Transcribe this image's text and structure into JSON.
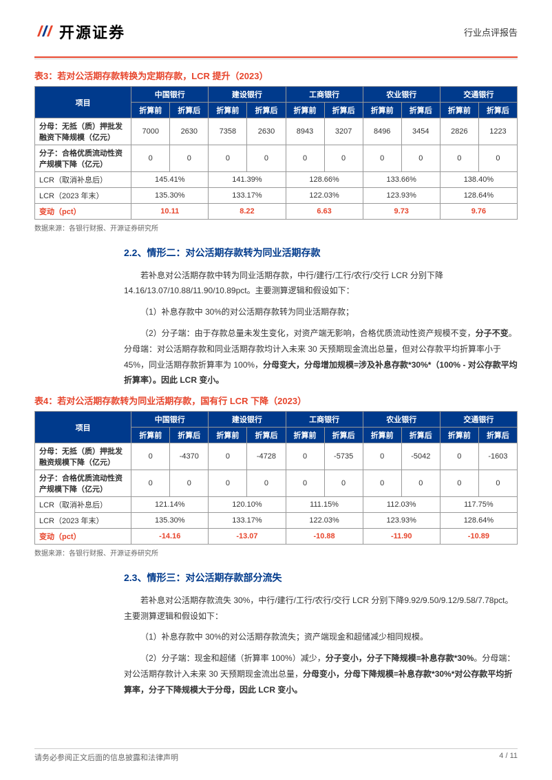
{
  "header": {
    "logo_text": "开源证券",
    "report_type": "行业点评报告"
  },
  "table3": {
    "title": "表3：若对公活期存款转换为定期存款，LCR 提升（2023）",
    "header_row1": {
      "item": "项目",
      "banks": [
        "中国银行",
        "建设银行",
        "工商银行",
        "农业银行",
        "交通银行"
      ]
    },
    "header_row2": [
      "折算前",
      "折算后",
      "折算前",
      "折算后",
      "折算前",
      "折算后",
      "折算前",
      "折算后",
      "折算前",
      "折算后"
    ],
    "rows": [
      {
        "name": "分母：无抵（质）押批发融资下降规模（亿元）",
        "vals": [
          "7000",
          "2630",
          "7358",
          "2630",
          "8943",
          "3207",
          "8496",
          "3454",
          "2826",
          "1223"
        ],
        "bold_name": true
      },
      {
        "name": "分子：合格优质流动性资产规模下降（亿元）",
        "vals": [
          "0",
          "0",
          "0",
          "0",
          "0",
          "0",
          "0",
          "0",
          "0",
          "0"
        ],
        "bold_name": true
      },
      {
        "name": "LCR（取消补息后）",
        "vals_merged": [
          "145.41%",
          "141.39%",
          "128.66%",
          "133.66%",
          "138.40%"
        ]
      },
      {
        "name": "LCR（2023 年末）",
        "vals_merged": [
          "135.30%",
          "133.17%",
          "122.03%",
          "123.93%",
          "128.64%"
        ]
      },
      {
        "name": "变动（pct）",
        "vals_merged": [
          "10.11",
          "8.22",
          "6.63",
          "9.73",
          "9.76"
        ],
        "change": true
      }
    ],
    "source": "数据来源：各银行财报、开源证券研究所",
    "colors": {
      "header_bg": "#003a8c",
      "change_color": "#e7452c",
      "title_color": "#e7452c"
    }
  },
  "section22": {
    "heading": "2.2、情形二：对公活期存款转为同业活期存款",
    "p1": "若补息对公活期存款中转为同业活期存款，中行/建行/工行/农行/交行 LCR 分别下降 14.16/13.07/10.88/11.90/10.89pct。主要测算逻辑和假设如下：",
    "p2": "（1）补息存款中 30%的对公活期存款转为同业活期存款；",
    "p3_a": "（2）分子端：由于存款总量未发生变化，对资产端无影响，合格优质流动性资产规模不变，",
    "p3_b": "分子不变",
    "p3_c": "。分母端：对公活期存款和同业活期存款均计入未来 30 天预期现金流出总量，但对公存款平均折算率小于 45%，同业活期存款折算率为 100%，",
    "p3_d": "分母变大，分母增加规模=涉及补息存款*30%*（100% - 对公存款平均折算率）。因此 LCR 变小。"
  },
  "table4": {
    "title": "表4：若对公活期存款转为同业活期存款，国有行 LCR 下降（2023）",
    "header_row1": {
      "item": "项目",
      "banks": [
        "中国银行",
        "建设银行",
        "工商银行",
        "农业银行",
        "交通银行"
      ]
    },
    "header_row2": [
      "折算前",
      "折算后",
      "折算前",
      "折算后",
      "折算前",
      "折算后",
      "折算前",
      "折算后",
      "折算前",
      "折算后"
    ],
    "rows": [
      {
        "name": "分母：无抵（质）押批发融资规模下降（亿元）",
        "vals": [
          "0",
          "-4370",
          "0",
          "-4728",
          "0",
          "-5735",
          "0",
          "-5042",
          "0",
          "-1603"
        ],
        "bold_name": true
      },
      {
        "name": "分子：合格优质流动性资产规模下降（亿元）",
        "vals": [
          "0",
          "0",
          "0",
          "0",
          "0",
          "0",
          "0",
          "0",
          "0",
          "0"
        ],
        "bold_name": true
      },
      {
        "name": "LCR（取消补息后）",
        "vals_merged": [
          "121.14%",
          "120.10%",
          "111.15%",
          "112.03%",
          "117.75%"
        ]
      },
      {
        "name": "LCR（2023 年末）",
        "vals_merged": [
          "135.30%",
          "133.17%",
          "122.03%",
          "123.93%",
          "128.64%"
        ]
      },
      {
        "name": "变动（pct）",
        "vals_merged": [
          "-14.16",
          "-13.07",
          "-10.88",
          "-11.90",
          "-10.89"
        ],
        "change": true
      }
    ],
    "source": "数据来源：各银行财报、开源证券研究所"
  },
  "section23": {
    "heading": "2.3、情形三：对公活期存款部分流失",
    "p1": "若补息对公活期存款流失 30%，中行/建行/工行/农行/交行 LCR 分别下降9.92/9.50/9.12/9.58/7.78pct。主要测算逻辑和假设如下：",
    "p2": "（1）补息存款中 30%的对公活期存款流失；资产端现金和超储减少相同规模。",
    "p3_a": "（2）分子端：现金和超储（折算率 100%）减少，",
    "p3_b": "分子变小，分子下降规模=补息存款*30%",
    "p3_c": "。分母端：对公活期存款计入未来 30 天预期现金流出总量，",
    "p3_d": "分母变小，分母下降规模=补息存款*30%*对公存款平均折算率，分子下降规模大于分母，因此 LCR 变小。"
  },
  "footer": {
    "left": "请务必参阅正文后面的信息披露和法律声明",
    "right": "4 / 11"
  }
}
